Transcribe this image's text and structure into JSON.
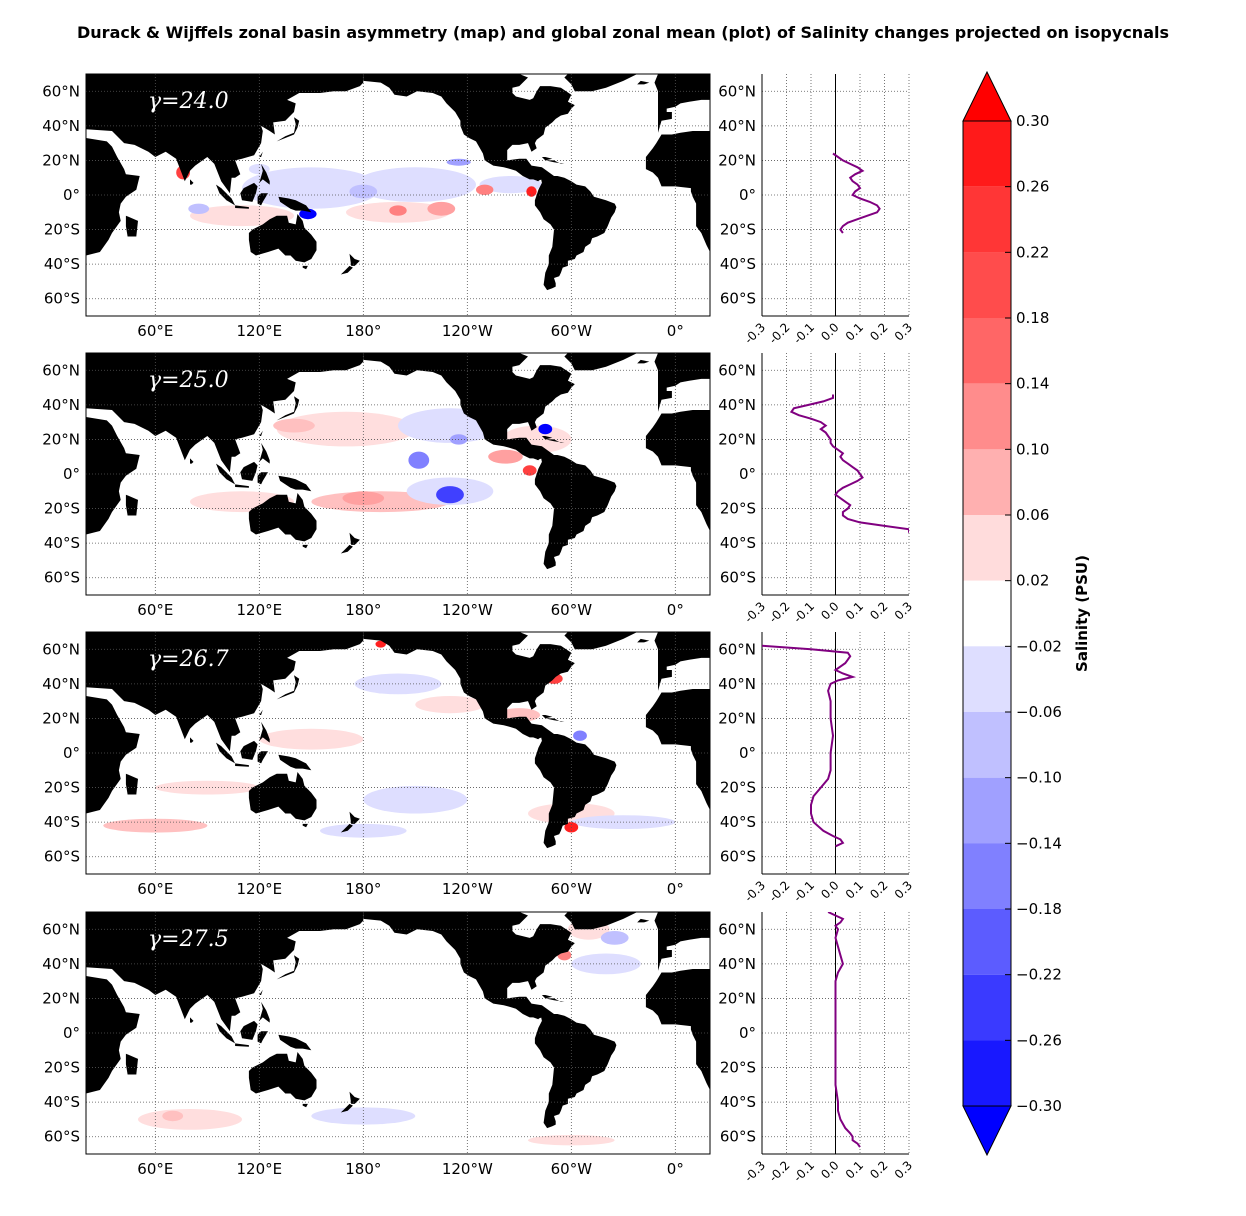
{
  "title": "Durack & Wijffels zonal basin asymmetry (map) and global zonal mean (plot) of Salinity changes projected on isopycnals",
  "colors": {
    "land": "#000000",
    "ocean": "#ffffff",
    "zonal_mean_line": "#800080",
    "frame": "#000000",
    "grid": "#555555"
  },
  "map_axes": {
    "lon_ticks": [
      "60°E",
      "120°E",
      "180°",
      "120°W",
      "60°W",
      "0°"
    ],
    "lat_ticks": [
      "60°N",
      "40°N",
      "20°N",
      "0°",
      "20°S",
      "40°S",
      "60°S"
    ],
    "lon_values": [
      60,
      120,
      180,
      240,
      300,
      360
    ],
    "lat_values": [
      60,
      40,
      20,
      0,
      -20,
      -40,
      -60
    ]
  },
  "colorbar": {
    "label": "Salinity (PSU)",
    "ticks": [
      "0.30",
      "0.26",
      "0.22",
      "0.18",
      "0.14",
      "0.10",
      "0.06",
      "0.02",
      "−0.02",
      "−0.06",
      "−0.10",
      "−0.14",
      "−0.18",
      "−0.22",
      "−0.26",
      "−0.30"
    ],
    "levels": [
      0.3,
      0.26,
      0.22,
      0.18,
      0.14,
      0.1,
      0.06,
      0.02,
      -0.02,
      -0.06,
      -0.1,
      -0.14,
      -0.18,
      -0.22,
      -0.26,
      -0.3
    ],
    "colors_top_to_bottom": [
      "#ff1a1a",
      "#ff3030",
      "#ff4848",
      "#ff6464",
      "#ff8080",
      "#ffa0a0",
      "#ffc0c0",
      "#ffdede",
      "#ffffff",
      "#dedeff",
      "#c0c0ff",
      "#a0a0ff",
      "#8080ff",
      "#6060ff",
      "#4040ff",
      "#2020ff",
      "#0000ff"
    ],
    "extend_top_color": "#ff0000",
    "extend_bottom_color": "#0000ff"
  },
  "chart_data": [
    {
      "type": "heatmap",
      "panel_label": "γ=24.0",
      "zonal_mean": {
        "type": "line",
        "x_ticks": [
          "-0.3",
          "-0.2",
          "-0.1",
          "0.0",
          "0.1",
          "0.2",
          "0.3"
        ],
        "xlim": [
          -0.3,
          0.3
        ],
        "ylim": [
          -70,
          70
        ],
        "lat": [
          24,
          22,
          20,
          18,
          16,
          14,
          12,
          10,
          8,
          6,
          4,
          2,
          0,
          -2,
          -4,
          -6,
          -8,
          -10,
          -12,
          -14,
          -16,
          -18,
          -20,
          -22
        ],
        "values": [
          -0.01,
          0.01,
          0.03,
          0.06,
          0.09,
          0.11,
          0.08,
          0.06,
          0.07,
          0.09,
          0.1,
          0.08,
          0.07,
          0.1,
          0.14,
          0.17,
          0.18,
          0.17,
          0.13,
          0.09,
          0.05,
          0.03,
          0.02,
          0.03
        ]
      }
    },
    {
      "type": "heatmap",
      "panel_label": "γ=25.0",
      "zonal_mean": {
        "type": "line",
        "x_ticks": [
          "-0.3",
          "-0.2",
          "-0.1",
          "0.0",
          "0.1",
          "0.2",
          "0.3"
        ],
        "xlim": [
          -0.3,
          0.3
        ],
        "ylim": [
          -70,
          70
        ],
        "lat": [
          46,
          44,
          42,
          40,
          38,
          36,
          34,
          32,
          30,
          28,
          26,
          24,
          22,
          20,
          18,
          16,
          14,
          12,
          10,
          8,
          6,
          4,
          2,
          0,
          -2,
          -4,
          -6,
          -8,
          -10,
          -12,
          -14,
          -16,
          -18,
          -20,
          -22,
          -24,
          -26,
          -28,
          -30,
          -32,
          -34
        ],
        "values": [
          -0.01,
          -0.01,
          -0.05,
          -0.11,
          -0.17,
          -0.18,
          -0.15,
          -0.1,
          -0.06,
          -0.04,
          -0.06,
          -0.04,
          -0.03,
          -0.02,
          -0.02,
          -0.01,
          0.01,
          0.03,
          0.02,
          0.03,
          0.05,
          0.07,
          0.09,
          0.1,
          0.11,
          0.09,
          0.06,
          0.03,
          0.01,
          0.0,
          0.02,
          0.04,
          0.06,
          0.05,
          0.03,
          0.03,
          0.05,
          0.1,
          0.2,
          0.3,
          0.3
        ]
      }
    },
    {
      "type": "heatmap",
      "panel_label": "γ=26.7",
      "zonal_mean": {
        "type": "line",
        "x_ticks": [
          "-0.3",
          "-0.2",
          "-0.1",
          "0.0",
          "0.1",
          "0.2",
          "0.3"
        ],
        "xlim": [
          -0.3,
          0.3
        ],
        "ylim": [
          -70,
          70
        ],
        "lat": [
          62,
          60,
          58,
          56,
          54,
          52,
          50,
          48,
          46,
          44,
          42,
          40,
          36,
          30,
          20,
          10,
          0,
          -10,
          -15,
          -20,
          -25,
          -30,
          -35,
          -40,
          -45,
          -48,
          -50,
          -52,
          -54
        ],
        "values": [
          -0.3,
          -0.1,
          0.05,
          0.06,
          0.05,
          0.04,
          0.02,
          0.0,
          0.03,
          0.07,
          0.01,
          -0.02,
          -0.03,
          -0.02,
          -0.02,
          -0.01,
          -0.02,
          -0.02,
          -0.03,
          -0.06,
          -0.09,
          -0.1,
          -0.1,
          -0.09,
          -0.05,
          -0.01,
          0.02,
          0.03,
          0.0
        ]
      }
    },
    {
      "type": "heatmap",
      "panel_label": "γ=27.5",
      "zonal_mean": {
        "type": "line",
        "x_ticks": [
          "-0.3",
          "-0.2",
          "-0.1",
          "0.0",
          "0.1",
          "0.2",
          "0.3"
        ],
        "xlim": [
          -0.3,
          0.3
        ],
        "ylim": [
          -70,
          70
        ],
        "lat": [
          70,
          68,
          66,
          64,
          62,
          60,
          55,
          50,
          45,
          40,
          35,
          30,
          20,
          10,
          0,
          -10,
          -20,
          -30,
          -40,
          -45,
          -50,
          -55,
          -58,
          -60,
          -62,
          -64,
          -66
        ],
        "values": [
          -0.03,
          0.0,
          0.03,
          0.02,
          0.0,
          0.01,
          0.0,
          0.01,
          0.02,
          0.03,
          0.01,
          0.0,
          0.0,
          0.0,
          0.0,
          0.0,
          0.0,
          0.0,
          0.01,
          0.01,
          0.02,
          0.04,
          0.06,
          0.07,
          0.07,
          0.09,
          0.1
        ]
      }
    }
  ]
}
